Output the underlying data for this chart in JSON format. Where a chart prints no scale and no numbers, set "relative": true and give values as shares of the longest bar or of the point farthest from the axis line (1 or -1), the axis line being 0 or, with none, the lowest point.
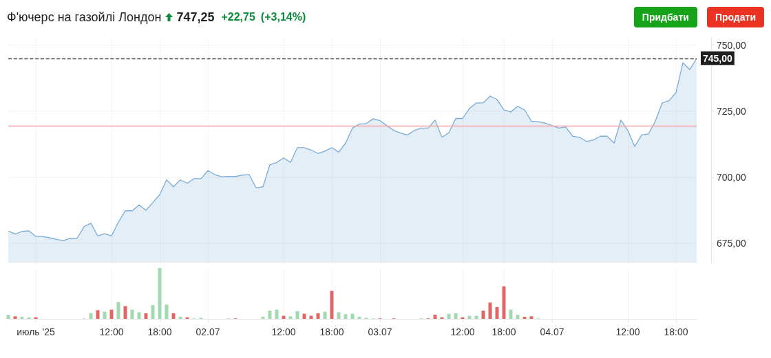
{
  "chart_data": [
    {
      "type": "area",
      "title": "Ф'ючерс на газойлі Лондон",
      "annotations": [
        "747,25",
        "+22,75",
        "(+3,14%)",
        "Придбати",
        "Продати"
      ],
      "categories": [
        null,
        null,
        null,
        null,
        null,
        null,
        null,
        null,
        null,
        null,
        null,
        null,
        null,
        null,
        null,
        null,
        null,
        null,
        null,
        null,
        null,
        null,
        null,
        null,
        null,
        null,
        null,
        null,
        null,
        null,
        null,
        null,
        null,
        null,
        null,
        null,
        null,
        null,
        null,
        null,
        null,
        null,
        null,
        null,
        null,
        null,
        null,
        null,
        null,
        null,
        null,
        null,
        null,
        null,
        null,
        null,
        null,
        null,
        null,
        null,
        null,
        null,
        null,
        null,
        null,
        null,
        null,
        null,
        null,
        null,
        null,
        null,
        null,
        null,
        null,
        null,
        null,
        null,
        null,
        null,
        null,
        null,
        null,
        null,
        null,
        null,
        null,
        null,
        null,
        null,
        null,
        null,
        null,
        null,
        null,
        null,
        null,
        null,
        null,
        null,
        null
      ],
      "series": [
        {
          "color": "#7aacd6",
          "values": [
            679.7,
            678.5,
            679.5,
            679.7,
            677.6,
            677.6,
            677.1,
            676.5,
            676.0,
            676.9,
            676.9,
            681.3,
            682.6,
            677.8,
            678.6,
            677.8,
            683.0,
            687.3,
            687.3,
            689.5,
            687.5,
            690.4,
            693.4,
            699.0,
            696.4,
            699.0,
            697.7,
            699.5,
            699.4,
            702.5,
            701.0,
            700.2,
            700.3,
            700.3,
            700.8,
            701.0,
            696.0,
            696.4,
            704.7,
            705.6,
            707.3,
            705.6,
            711.2,
            711.2,
            710.3,
            709.0,
            709.9,
            711.2,
            709.5,
            712.9,
            718.6,
            720.1,
            720.3,
            722.1,
            721.4,
            719.5,
            717.7,
            716.7,
            716.0,
            717.7,
            718.6,
            718.6,
            721.6,
            715.1,
            716.8,
            722.2,
            722.2,
            726.0,
            728.1,
            728.1,
            730.7,
            729.4,
            725.5,
            724.7,
            726.8,
            725.5,
            721.2,
            721.0,
            720.5,
            719.5,
            718.6,
            719.0,
            715.5,
            715.1,
            713.5,
            714.1,
            715.5,
            715.5,
            712.9,
            721.6,
            717.7,
            711.6,
            716.0,
            716.4,
            721.2,
            728.1,
            729.0,
            732.0,
            743.3,
            740.7,
            745.0
          ]
        }
      ],
      "ylim": [
        668,
        753
      ],
      "yticks": [
        {
          "value": 675,
          "label": "675,00"
        },
        {
          "value": 700,
          "label": "700,00"
        },
        {
          "value": 725,
          "label": "725,00"
        },
        {
          "value": 750,
          "label": "750,00"
        }
      ],
      "ref_lines": [
        {
          "axis": "y",
          "value": 745,
          "label": "745,00",
          "color": "#555555",
          "line_style": "dashed"
        },
        {
          "axis": "y",
          "value": 719.5,
          "color": "#f6a5a5"
        }
      ],
      "grid": true,
      "tick_labels": "y"
    },
    {
      "type": "bar",
      "relative": true,
      "categories": [
        null,
        null,
        null,
        null,
        "июль '25",
        null,
        null,
        null,
        null,
        null,
        null,
        null,
        null,
        null,
        null,
        "12:00",
        null,
        null,
        null,
        null,
        null,
        null,
        "18:00",
        null,
        null,
        null,
        null,
        null,
        null,
        "02.07",
        null,
        null,
        null,
        null,
        null,
        null,
        null,
        null,
        null,
        null,
        "12:00",
        null,
        null,
        null,
        null,
        null,
        null,
        "18:00",
        null,
        null,
        null,
        null,
        null,
        null,
        "03.07",
        null,
        null,
        null,
        null,
        null,
        null,
        null,
        null,
        null,
        null,
        null,
        "12:00",
        null,
        null,
        null,
        null,
        null,
        "18:00",
        null,
        null,
        null,
        null,
        null,
        null,
        "04.07",
        null,
        null,
        null,
        null,
        null,
        null,
        null,
        null,
        null,
        null,
        "12:00",
        null,
        null,
        null,
        null,
        null,
        null,
        "18:00",
        null,
        null,
        null
      ],
      "values": [
        0.08,
        0.05,
        0.04,
        0.03,
        0.03,
        null,
        null,
        null,
        null,
        null,
        null,
        0.01,
        0.11,
        0.17,
        0.14,
        0.18,
        0.33,
        0.25,
        0.18,
        0.13,
        0.11,
        0.27,
        1,
        0.28,
        0.11,
        0.04,
        0.03,
        0.01,
        0.02,
        null,
        null,
        null,
        0.01,
        0.01,
        null,
        null,
        null,
        0.04,
        0.16,
        0.18,
        0.06,
        0.05,
        0.15,
        0.1,
        0.06,
        0.11,
        0.14,
        0.55,
        0.13,
        0.09,
        0.1,
        0.04,
        0.02,
        0.01,
        0.01,
        null,
        0.01,
        null,
        null,
        null,
        0.01,
        0.01,
        0.08,
        0.03,
        0.1,
        0.11,
        0.03,
        0.06,
        0.06,
        0.16,
        0.32,
        0.23,
        0.64,
        0.18,
        0.08,
        0.04,
        0.05,
        0.01,
        null,
        null,
        null,
        null,
        null,
        null,
        null,
        null,
        null,
        null,
        null,
        null,
        null,
        null,
        null,
        null,
        null,
        null,
        null,
        null,
        null,
        null,
        null
      ],
      "colors": [
        "#a3d9b1",
        "#e06666",
        "#a3d9b1",
        "#a3d9b1",
        "#e06666",
        null,
        null,
        null,
        null,
        null,
        null,
        "#a3d9b1",
        "#a3d9b1",
        "#e06666",
        "#a3d9b1",
        "#e06666",
        "#a3d9b1",
        "#e06666",
        "#a3d9b1",
        "#a3d9b1",
        "#e06666",
        "#a3d9b1",
        "#a3d9b1",
        "#a3d9b1",
        "#e06666",
        "#a3d9b1",
        "#e06666",
        "#a3d9b1",
        "#a3d9b1",
        null,
        null,
        null,
        "#a3d9b1",
        "#e06666",
        null,
        null,
        null,
        "#a3d9b1",
        "#a3d9b1",
        "#a3d9b1",
        "#e06666",
        "#a3d9b1",
        "#a3d9b1",
        "#e06666",
        "#e06666",
        "#e06666",
        "#a3d9b1",
        "#e06666",
        "#a3d9b1",
        "#a3d9b1",
        "#a3d9b1",
        "#a3d9b1",
        "#a3d9b1",
        "#a3d9b1",
        "#e06666",
        null,
        "#e06666",
        null,
        null,
        null,
        "#a3d9b1",
        "#e06666",
        "#e06666",
        "#e06666",
        "#a3d9b1",
        "#a3d9b1",
        "#e06666",
        "#a3d9b1",
        "#a3d9b1",
        "#e06666",
        "#e06666",
        "#e06666",
        "#e06666",
        "#a3d9b1",
        "#a3d9b1",
        "#e06666",
        "#e06666",
        "#a3d9b1",
        null,
        null,
        null,
        null,
        null,
        null,
        null,
        null,
        null,
        null,
        null,
        null,
        null,
        null,
        null,
        null,
        null,
        null,
        null,
        null,
        null,
        null,
        null
      ],
      "grid": "x",
      "tick_labels": "x"
    }
  ]
}
